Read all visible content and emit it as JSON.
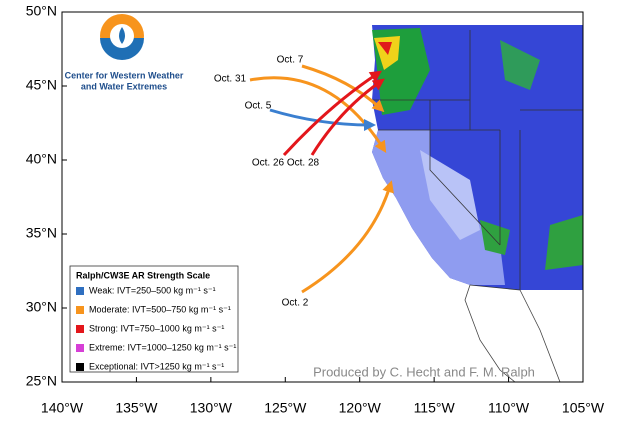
{
  "map": {
    "lat_ticks": [
      {
        "value": 50,
        "label": "50°N"
      },
      {
        "value": 45,
        "label": "45°N"
      },
      {
        "value": 40,
        "label": "40°N"
      },
      {
        "value": 35,
        "label": "35°N"
      },
      {
        "value": 30,
        "label": "30°N"
      },
      {
        "value": 25,
        "label": "25°N"
      }
    ],
    "lon_ticks": [
      {
        "value": 140,
        "label": "140°W"
      },
      {
        "value": 135,
        "label": "135°W"
      },
      {
        "value": 130,
        "label": "130°W"
      },
      {
        "value": 125,
        "label": "125°W"
      },
      {
        "value": 120,
        "label": "120°W"
      },
      {
        "value": 115,
        "label": "115°W"
      },
      {
        "value": 110,
        "label": "110°W"
      },
      {
        "value": 105,
        "label": "105°W"
      }
    ]
  },
  "logo": {
    "lines": [
      "Center for Western Weather",
      "and Water Extremes"
    ]
  },
  "arrows": [
    {
      "label": "Oct. 7",
      "color": "#f7941d"
    },
    {
      "label": "Oct. 31",
      "color": "#f7941d"
    },
    {
      "label": "Oct. 5",
      "color": "#3a7fd0"
    },
    {
      "label": "Oct. 26",
      "color": "#e3161b"
    },
    {
      "label": "Oct. 28",
      "color": "#e3161b"
    },
    {
      "label": "Oct. 2",
      "color": "#f7941d"
    }
  ],
  "legend": {
    "title": "Ralph/CW3E AR Strength Scale",
    "items": [
      {
        "label": "Weak: IVT=250–500 kg m⁻¹ s⁻¹",
        "color": "#2f6fc0"
      },
      {
        "label": "Moderate: IVT=500–750 kg m⁻¹ s⁻¹",
        "color": "#f7941d"
      },
      {
        "label": "Strong: IVT=750–1000 kg m⁻¹ s⁻¹",
        "color": "#e3161b"
      },
      {
        "label": "Extreme: IVT=1000–1250 kg m⁻¹ s⁻¹",
        "color": "#d63fd6"
      },
      {
        "label": "Exceptional: IVT>1250 kg m⁻¹ s⁻¹",
        "color": "#000000"
      }
    ]
  },
  "credit": "Produced by C. Hecht and F. M. Ralph"
}
